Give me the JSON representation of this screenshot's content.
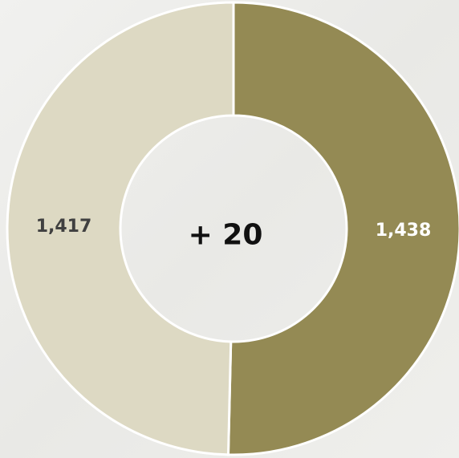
{
  "chart_data": {
    "type": "donut",
    "values": [
      1438,
      1417
    ],
    "value_labels": [
      "1,438",
      "1,417"
    ],
    "colors": [
      "#948a54",
      "#ddd9c3"
    ],
    "label_colors": [
      "#ffffff",
      "#404040"
    ],
    "center_label": "+ 20"
  }
}
